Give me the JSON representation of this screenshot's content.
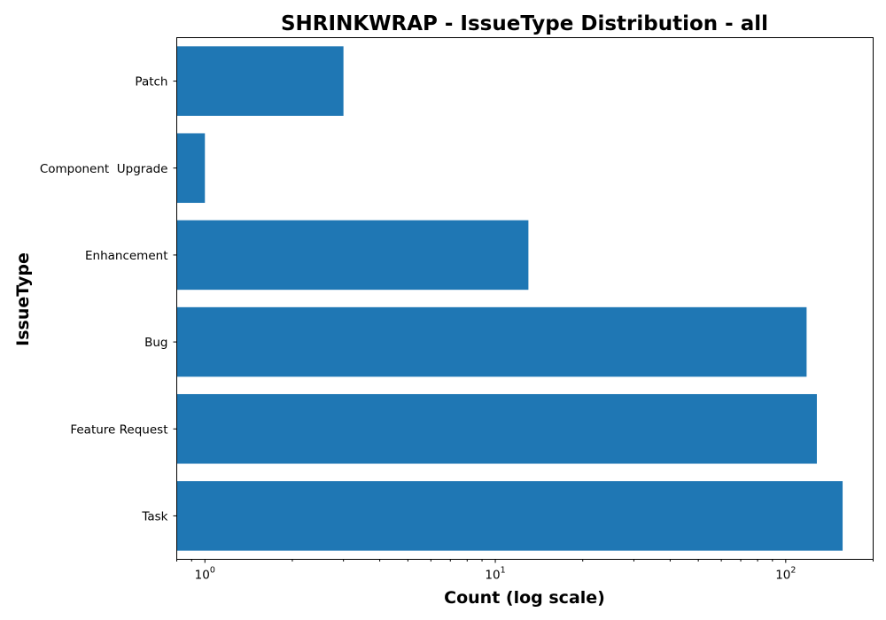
{
  "chart_data": {
    "type": "bar",
    "orientation": "horizontal",
    "title": "SHRINKWRAP - IssueType Distribution - all",
    "xlabel": "Count (log scale)",
    "ylabel": "IssueType",
    "x_scale": "log",
    "xlim": [
      0.8,
      200
    ],
    "x_ticks": [
      {
        "base": "10",
        "exp": "0",
        "value": 1
      },
      {
        "base": "10",
        "exp": "1",
        "value": 10
      },
      {
        "base": "10",
        "exp": "2",
        "value": 100
      }
    ],
    "categories": [
      "Patch",
      "Component  Upgrade",
      "Enhancement",
      "Bug",
      "Feature Request",
      "Task"
    ],
    "values": [
      3,
      1,
      13,
      118,
      128,
      157
    ],
    "bar_color": "#1f77b4",
    "grid": false,
    "legend": "none"
  }
}
